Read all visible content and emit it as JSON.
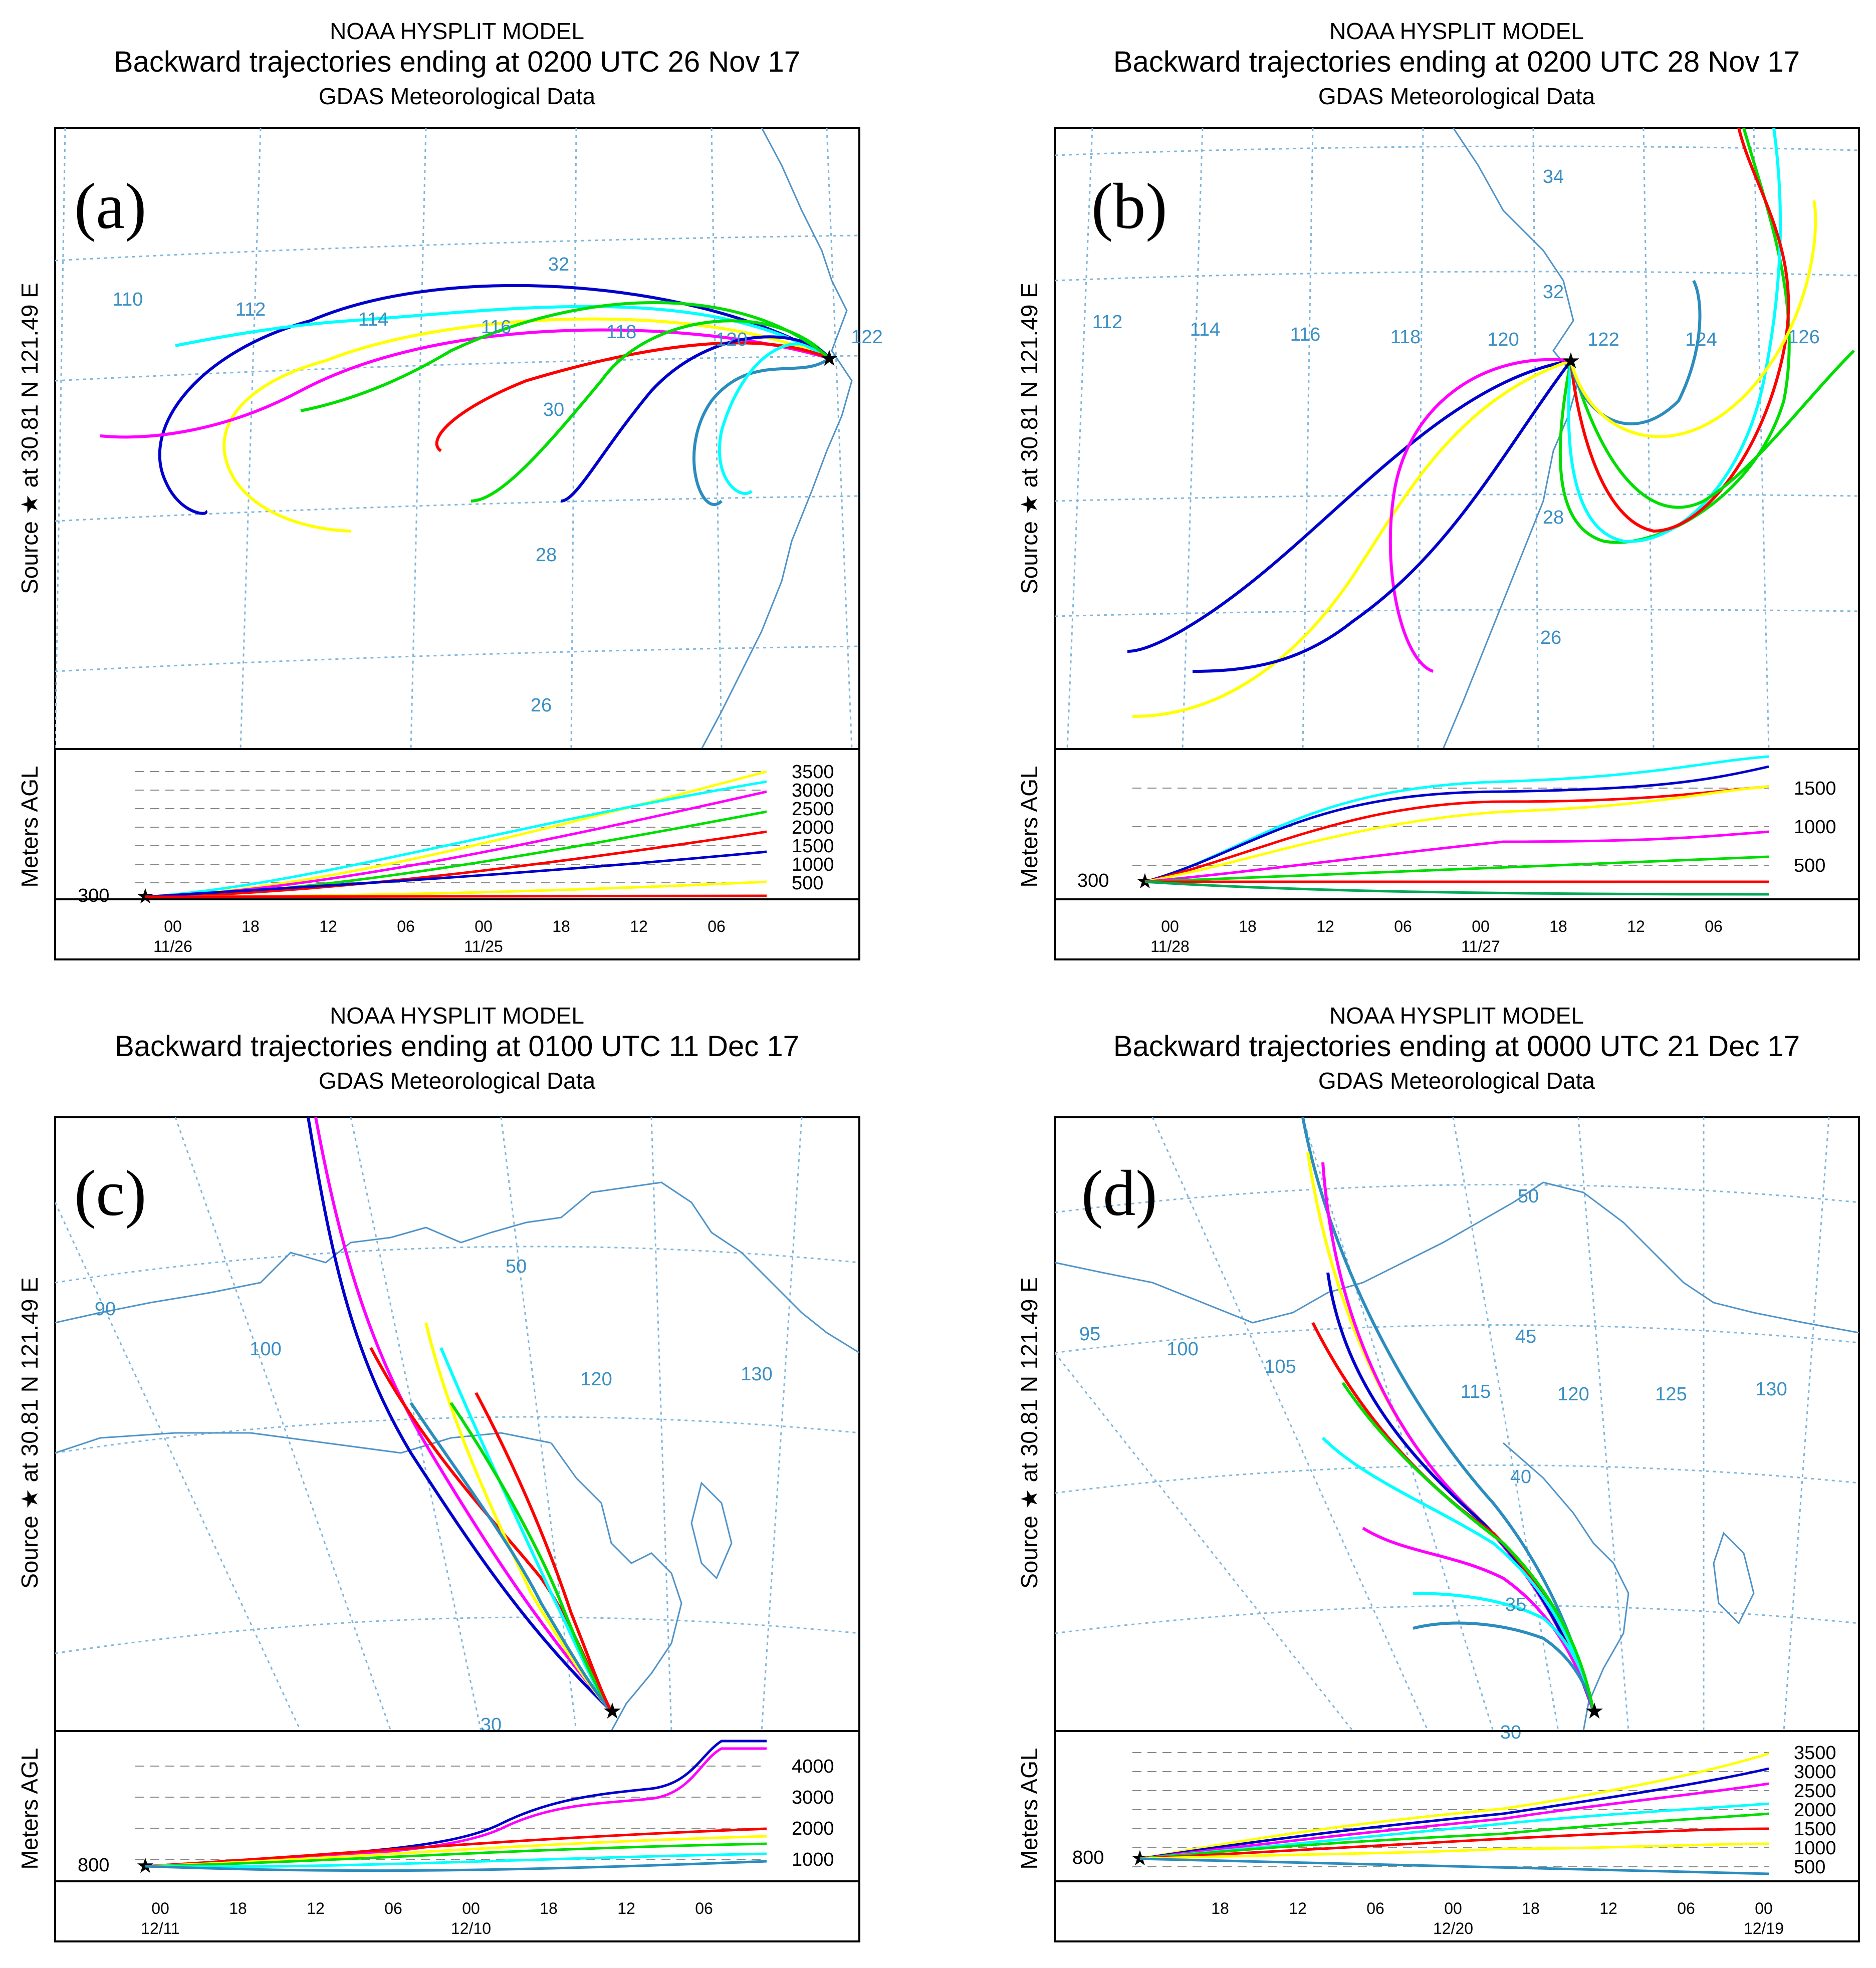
{
  "panels": [
    {
      "id": "a",
      "model": "NOAA HYSPLIT MODEL",
      "subtitle": "Backward trajectories ending at 0200 UTC 26 Nov 17",
      "met": "GDAS Meteorological Data",
      "letter": "(a)",
      "source_label": "Source ★ at 30.81 N 121.49 E",
      "lon_labels": [
        "110",
        "112",
        "114",
        "116",
        "118",
        "120",
        "122"
      ],
      "lat_labels": [
        "32",
        "30",
        "28",
        "26"
      ],
      "height_label": "Meters AGL",
      "height_ticks": [
        "3500",
        "3000",
        "2500",
        "2000",
        "1500",
        "1000",
        "500"
      ],
      "start_height": "300",
      "time_ticks": [
        "00",
        "18",
        "12",
        "06",
        "00",
        "18",
        "12",
        "06"
      ],
      "date_ticks": [
        "11/26",
        "11/25"
      ]
    },
    {
      "id": "b",
      "model": "NOAA HYSPLIT MODEL",
      "subtitle": "Backward trajectories ending at 0200 UTC 28 Nov 17",
      "met": "GDAS Meteorological Data",
      "letter": "(b)",
      "source_label": "Source ★ at 30.81 N 121.49 E",
      "lon_labels": [
        "112",
        "114",
        "116",
        "118",
        "120",
        "122",
        "124",
        "126"
      ],
      "lat_labels": [
        "34",
        "32",
        "28",
        "26"
      ],
      "height_label": "Meters AGL",
      "height_ticks": [
        "1500",
        "1000",
        "500"
      ],
      "start_height": "300",
      "time_ticks": [
        "00",
        "18",
        "12",
        "06",
        "00",
        "18",
        "12",
        "06"
      ],
      "date_ticks": [
        "11/28",
        "11/27"
      ]
    },
    {
      "id": "c",
      "model": "NOAA HYSPLIT MODEL",
      "subtitle": "Backward trajectories ending at 0100 UTC 11 Dec 17",
      "met": "GDAS Meteorological Data",
      "letter": "(c)",
      "source_label": "Source ★ at 30.81 N 121.49 E",
      "lon_labels": [
        "90",
        "100",
        "120",
        "130"
      ],
      "lat_labels": [
        "50",
        "30"
      ],
      "height_label": "Meters AGL",
      "height_ticks": [
        "4000",
        "3000",
        "2000",
        "1000"
      ],
      "start_height": "800",
      "time_ticks": [
        "00",
        "18",
        "12",
        "06",
        "00",
        "18",
        "12",
        "06"
      ],
      "date_ticks": [
        "12/11",
        "12/10"
      ]
    },
    {
      "id": "d",
      "model": "NOAA HYSPLIT MODEL",
      "subtitle": "Backward trajectories ending at 0000 UTC 21 Dec 17",
      "met": "GDAS Meteorological Data",
      "letter": "(d)",
      "source_label": "Source ★ at 30.81 N 121.49 E",
      "lon_labels": [
        "95",
        "100",
        "105",
        "115",
        "120",
        "125",
        "130"
      ],
      "lat_labels": [
        "50",
        "45",
        "40",
        "35",
        "30"
      ],
      "height_label": "Meters AGL",
      "height_ticks": [
        "3500",
        "3000",
        "2500",
        "2000",
        "1500",
        "1000",
        "500"
      ],
      "start_height": "800",
      "time_ticks": [
        "18",
        "12",
        "06",
        "00",
        "18",
        "12",
        "06",
        "00"
      ],
      "date_ticks": [
        "12/20",
        "12/19"
      ]
    }
  ],
  "colors": {
    "frame": "#000000",
    "grid": "#7fb6dc",
    "coast": "#4f93c8",
    "dash": "#888888",
    "series": [
      "#0000cc",
      "#ff00ff",
      "#ffff00",
      "#00ffff",
      "#00dd00",
      "#ff0000",
      "#2b8cbe",
      "#0055ff",
      "#ffee00",
      "#00bbee"
    ]
  }
}
